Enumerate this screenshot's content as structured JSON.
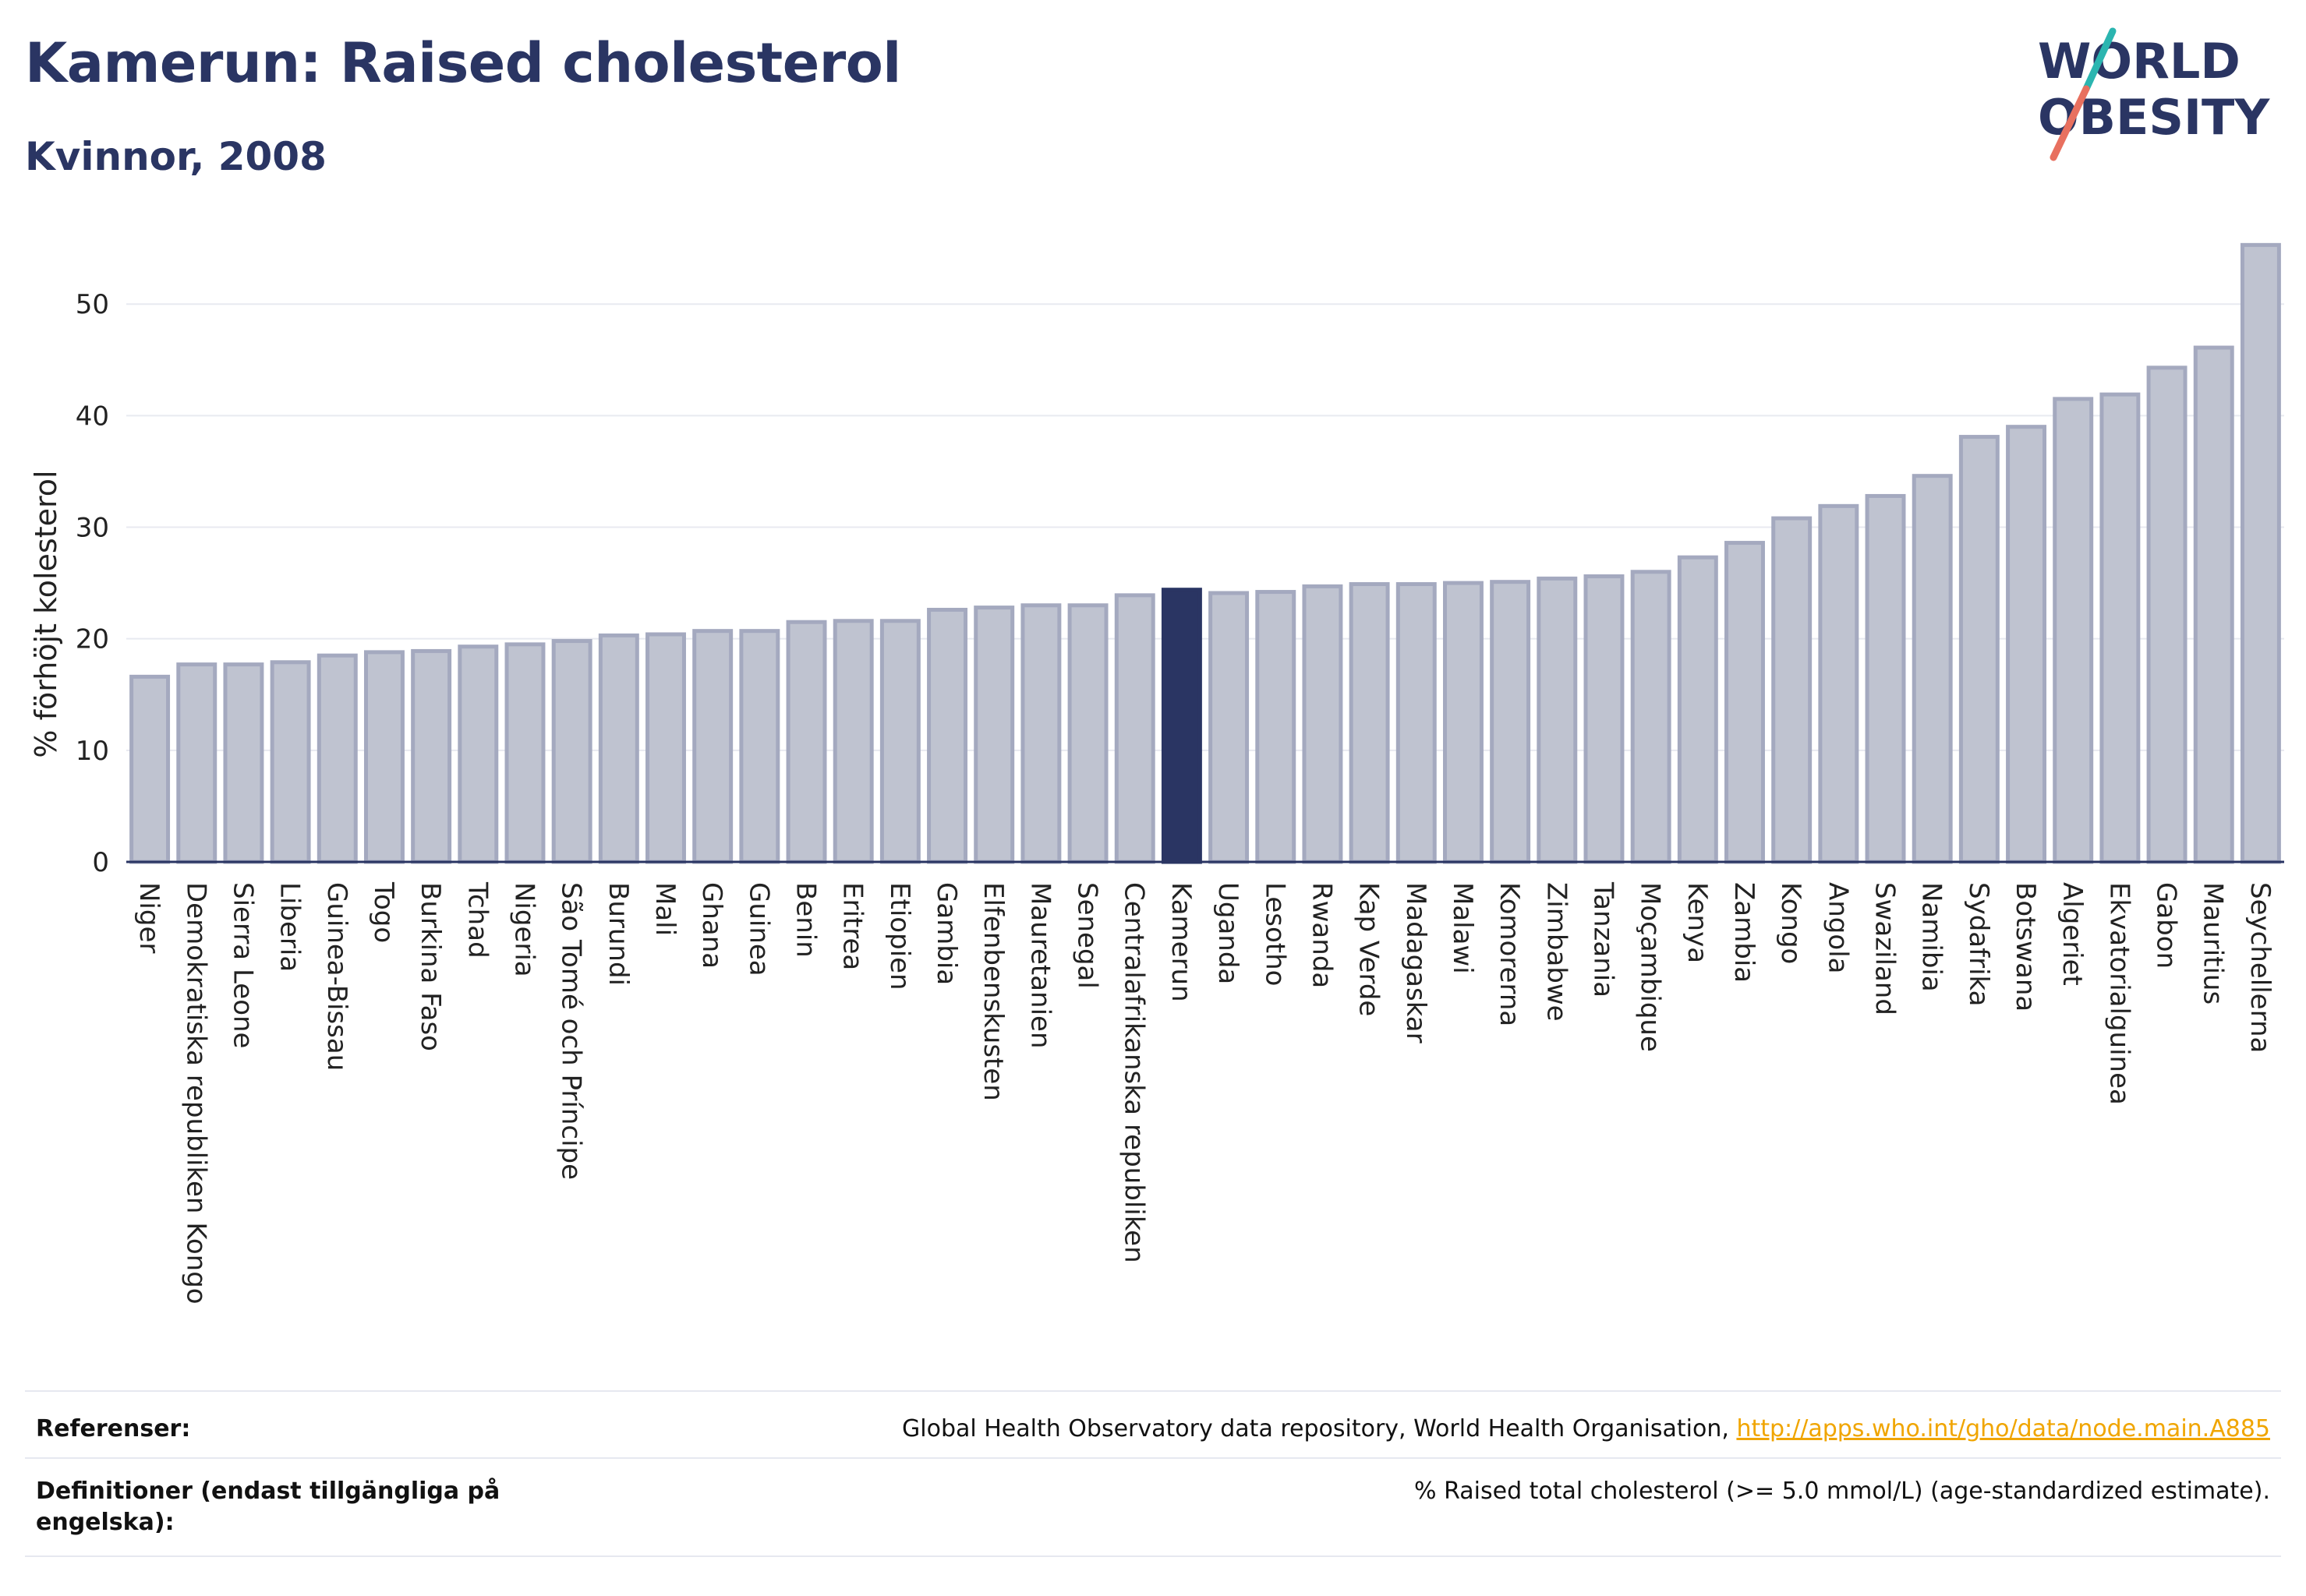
{
  "header": {
    "title": "Kamerun: Raised cholesterol",
    "subtitle": "Kvinnor, 2008"
  },
  "logo": {
    "line1": "WORLD",
    "line2": "OBESITY"
  },
  "colors": {
    "bar": "#bfc3d0",
    "bar_stroke": "#a4a9bf",
    "highlight": "#2a3563",
    "title": "#2a3563",
    "link": "#f0a500",
    "logo_slash_teal": "#2bb5b0",
    "logo_slash_coral": "#e8705f"
  },
  "chart_data": {
    "type": "bar",
    "ylabel": "% förhöjt kolesterol",
    "xlabel": "",
    "ylim": [
      0,
      57
    ],
    "yticks": [
      0,
      10,
      20,
      30,
      40,
      50
    ],
    "grid": true,
    "highlight": "Kamerun",
    "categories": [
      "Niger",
      "Demokratiska republiken Kongo",
      "Sierra Leone",
      "Liberia",
      "Guinea-Bissau",
      "Togo",
      "Burkina Faso",
      "Tchad",
      "Nigeria",
      "São Tomé och Príncipe",
      "Burundi",
      "Mali",
      "Ghana",
      "Guinea",
      "Benin",
      "Eritrea",
      "Etiopien",
      "Gambia",
      "Elfenbenskusten",
      "Mauretanien",
      "Senegal",
      "Centralafrikanska republiken",
      "Kamerun",
      "Uganda",
      "Lesotho",
      "Rwanda",
      "Kap Verde",
      "Madagaskar",
      "Malawi",
      "Komorerna",
      "Zimbabwe",
      "Tanzania",
      "Moçambique",
      "Kenya",
      "Zambia",
      "Kongo",
      "Angola",
      "Swaziland",
      "Namibia",
      "Sydafrika",
      "Botswana",
      "Algeriet",
      "Ekvatorialguinea",
      "Gabon",
      "Mauritius",
      "Seychellerna"
    ],
    "values": [
      16.6,
      17.7,
      17.7,
      17.9,
      18.5,
      18.8,
      18.9,
      19.3,
      19.5,
      19.8,
      20.3,
      20.4,
      20.7,
      20.7,
      21.5,
      21.6,
      21.6,
      22.6,
      22.8,
      23.0,
      23.0,
      23.9,
      24.4,
      24.1,
      24.2,
      24.7,
      24.9,
      24.9,
      25.0,
      25.1,
      25.4,
      25.6,
      26.0,
      27.3,
      28.6,
      30.8,
      31.9,
      32.8,
      34.6,
      38.1,
      39.0,
      41.5,
      41.9,
      44.3,
      46.1,
      55.3
    ]
  },
  "footer": {
    "references_label": "Referenser:",
    "references_text": "Global Health Observatory data repository, World Health Organisation, ",
    "references_link": "http://apps.who.int/gho/data/node.main.A885",
    "definitions_label": "Definitioner (endast tillgängliga på engelska):",
    "definitions_text": "% Raised total cholesterol (>= 5.0 mmol/L) (age-standardized estimate)."
  }
}
